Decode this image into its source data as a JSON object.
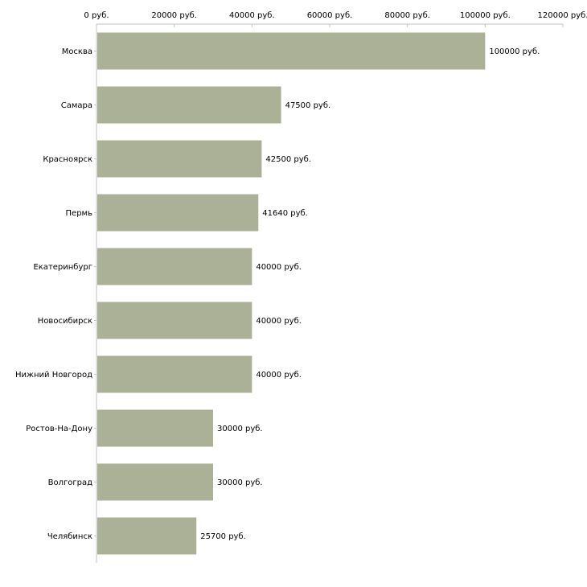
{
  "chart_data": {
    "type": "bar",
    "orientation": "horizontal",
    "title": "",
    "xlabel": "",
    "ylabel": "",
    "xlim": [
      0,
      120000
    ],
    "ticks": [
      0,
      20000,
      40000,
      60000,
      80000,
      100000,
      120000
    ],
    "tick_labels": [
      "0 руб.",
      "20000 руб.",
      "40000 руб.",
      "60000 руб.",
      "80000 руб.",
      "100000 руб.",
      "120000 руб."
    ],
    "categories": [
      "Москва",
      "Самара",
      "Красноярск",
      "Пермь",
      "Екатеринбург",
      "Новосибирск",
      "Нижний Новгород",
      "Ростов-На-Дону",
      "Волгоград",
      "Челябинск"
    ],
    "values": [
      100000,
      47500,
      42500,
      41640,
      40000,
      40000,
      40000,
      30000,
      30000,
      25700
    ],
    "value_labels": [
      "100000 руб.",
      "47500 руб.",
      "42500 руб.",
      "41640 руб.",
      "40000 руб.",
      "40000 руб.",
      "40000 руб.",
      "30000 руб.",
      "30000 руб.",
      "25700 руб."
    ],
    "bar_color": "#abb197",
    "axis_color": "#c0c0c0",
    "grid": false
  }
}
